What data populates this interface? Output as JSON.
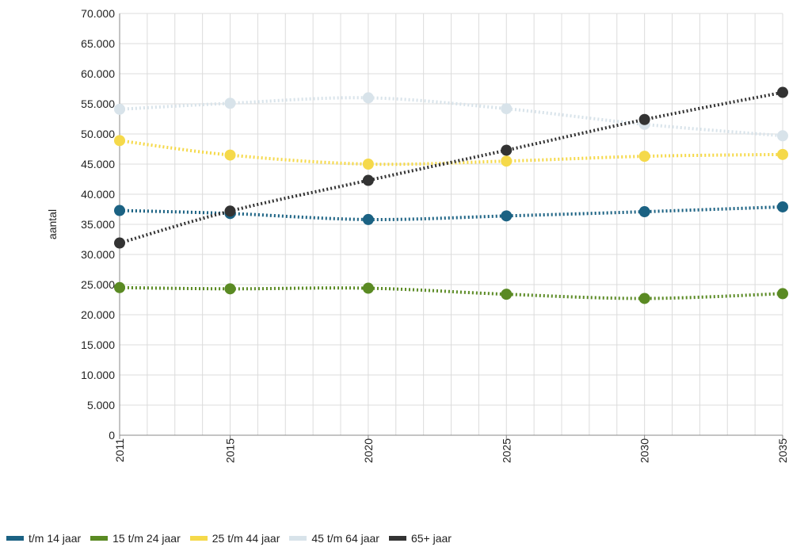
{
  "chart_data": {
    "type": "line",
    "xlabel": "",
    "ylabel": "aantal",
    "ylim": [
      0,
      70000
    ],
    "y_ticks": [
      "0",
      "5.000",
      "10.000",
      "15.000",
      "20.000",
      "25.000",
      "30.000",
      "35.000",
      "40.000",
      "45.000",
      "50.000",
      "55.000",
      "60.000",
      "65.000",
      "70.000"
    ],
    "x": [
      2011,
      2015,
      2020,
      2025,
      2030,
      2035
    ],
    "x_tick_labels": [
      "2011",
      "2015",
      "2020",
      "2025",
      "2030",
      "2035"
    ],
    "grid": true,
    "legend_position": "bottom-left",
    "line_style": "dotted",
    "series": [
      {
        "name": "t/m 14 jaar",
        "color": "#1b6283",
        "values": [
          37300,
          36800,
          35800,
          36400,
          37100,
          37900
        ]
      },
      {
        "name": "15 t/m 24 jaar",
        "color": "#5a8a23",
        "values": [
          24500,
          24300,
          24400,
          23400,
          22700,
          23500
        ]
      },
      {
        "name": "25 t/m 44 jaar",
        "color": "#f5d94a",
        "values": [
          48900,
          46500,
          45000,
          45500,
          46300,
          46600
        ]
      },
      {
        "name": "45 t/m 64 jaar",
        "color": "#d8e3ea",
        "values": [
          54100,
          55100,
          56000,
          54200,
          51600,
          49700
        ]
      },
      {
        "name": "65+ jaar",
        "color": "#333333",
        "values": [
          31900,
          37200,
          42300,
          47300,
          52400,
          56900
        ]
      }
    ]
  }
}
